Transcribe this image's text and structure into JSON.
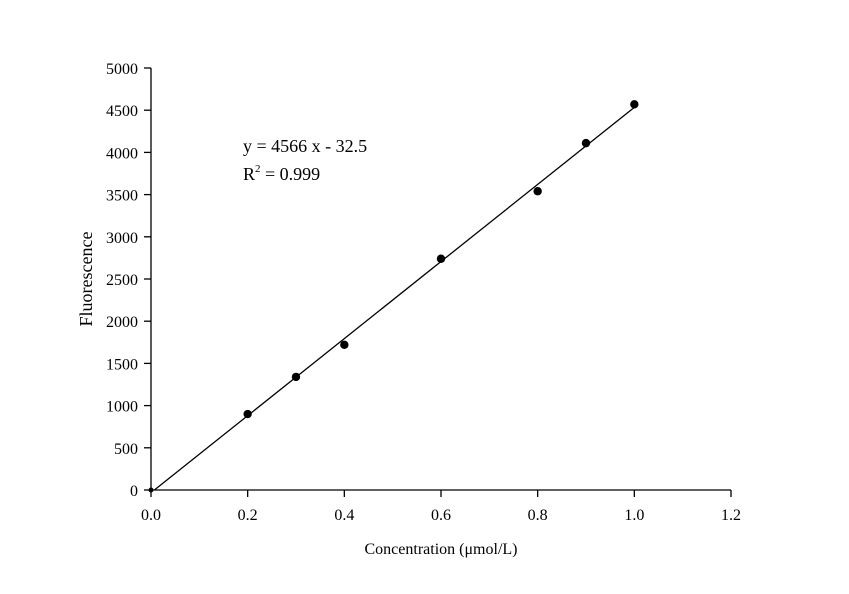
{
  "chart_data": {
    "type": "scatter",
    "title": "",
    "xlabel": "Concentration (μmol/L)",
    "ylabel": "Fluorescence",
    "xlim": [
      0,
      1.2
    ],
    "ylim": [
      0,
      5000
    ],
    "xticks": [
      "0.0",
      "0.2",
      "0.4",
      "0.6",
      "0.8",
      "1.0",
      "1.2"
    ],
    "yticks": [
      "0",
      "500",
      "1000",
      "1500",
      "2000",
      "2500",
      "3000",
      "3500",
      "4000",
      "4500",
      "5000"
    ],
    "grid": false,
    "series": [
      {
        "name": "data",
        "x": [
          0,
          0.2,
          0.3,
          0.4,
          0.6,
          0.8,
          0.9,
          1.0
        ],
        "y": [
          0,
          900,
          1340,
          1720,
          2740,
          3540,
          4110,
          4570
        ]
      }
    ],
    "fit": {
      "slope": 4566,
      "intercept": -32.5,
      "x_range": [
        0.007,
        1.0
      ]
    },
    "annotation": {
      "equation": "y = 4566 x - 32.5",
      "r2_prefix": "R",
      "r2_sup": "2",
      "r2_value": " = 0.999"
    }
  }
}
